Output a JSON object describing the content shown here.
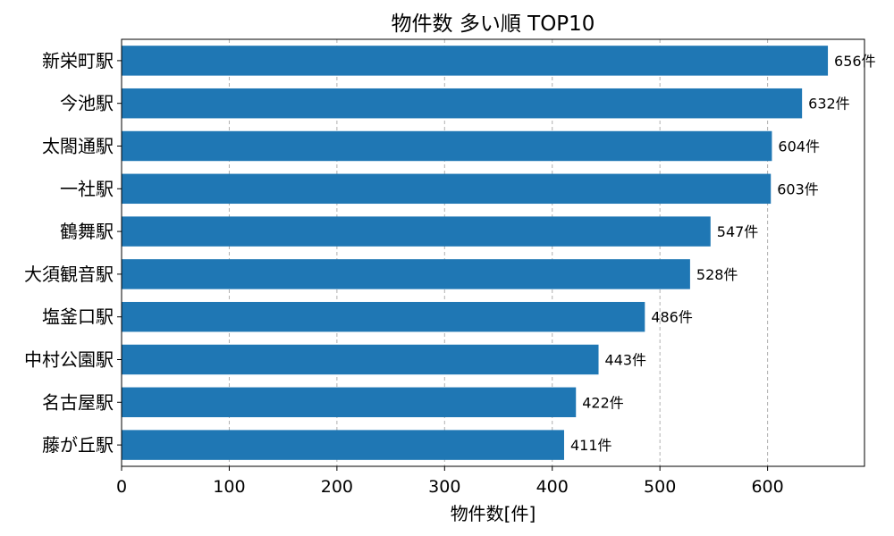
{
  "chart_data": {
    "type": "bar",
    "orientation": "horizontal",
    "title": "物件数 多い順 TOP10",
    "xlabel": "物件数[件]",
    "ylabel": "",
    "xlim": [
      0,
      690
    ],
    "xticks": [
      0,
      100,
      200,
      300,
      400,
      500,
      600
    ],
    "grid": "x-dashed",
    "bar_color": "#1f77b4",
    "value_suffix": "件",
    "categories": [
      "新栄町駅",
      "今池駅",
      "太閤通駅",
      "一社駅",
      "鶴舞駅",
      "大須観音駅",
      "塩釜口駅",
      "中村公園駅",
      "名古屋駅",
      "藤が丘駅"
    ],
    "values": [
      656,
      632,
      604,
      603,
      547,
      528,
      486,
      443,
      422,
      411
    ],
    "value_labels": [
      "656件",
      "632件",
      "604件",
      "603件",
      "547件",
      "528件",
      "486件",
      "443件",
      "422件",
      "411件"
    ]
  }
}
